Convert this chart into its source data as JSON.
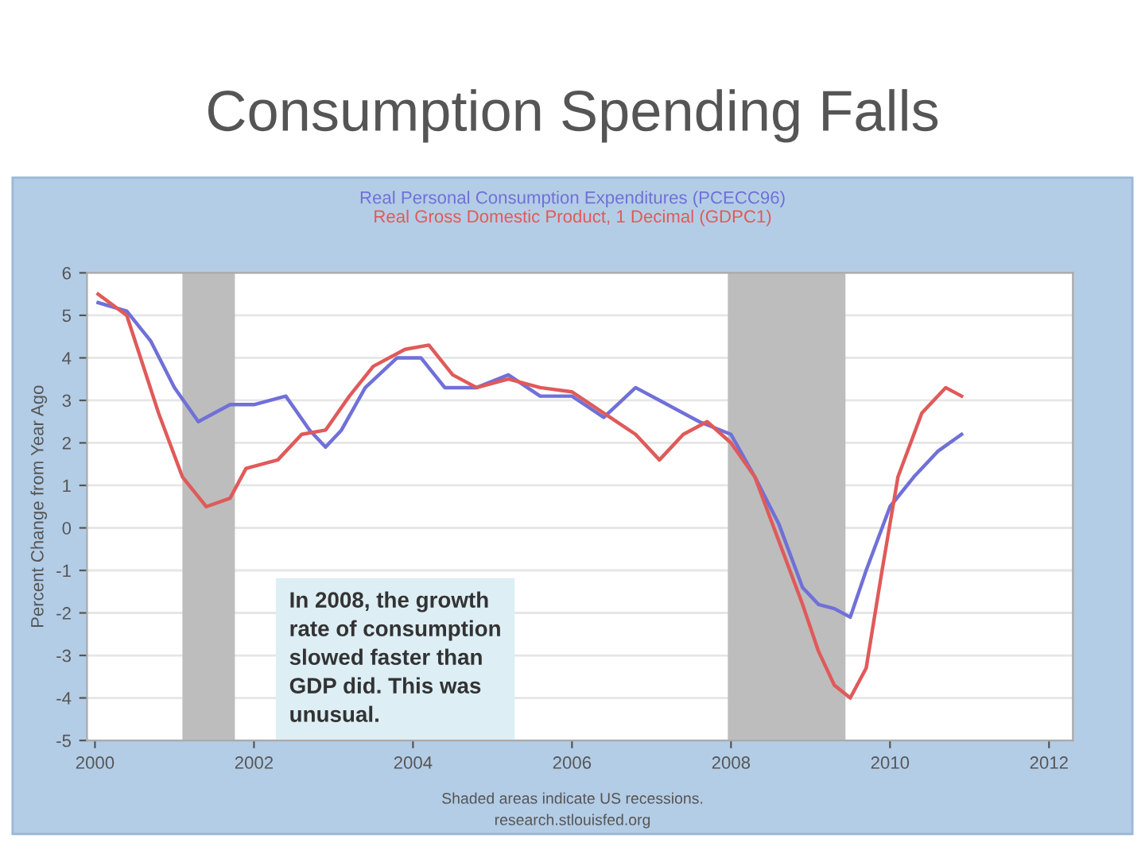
{
  "chart_data": {
    "type": "line",
    "title": "Consumption Spending Falls",
    "ylabel": "Percent Change from Year Ago",
    "annotations": [
      "In 2008, the growth\nrate of consumption\nslowed faster than\nGDP did. This was\nunusual.",
      "Shaded areas indicate US recessions.",
      "research.stlouisfed.org"
    ],
    "series": [
      {
        "name": "Real Personal Consumption Expenditures (PCECC96)",
        "color": "#7070d8",
        "x": [
          2000.04,
          2000.4,
          2000.7,
          2001.0,
          2001.3,
          2001.5,
          2001.7,
          2002.0,
          2002.4,
          2002.7,
          2002.9,
          2003.1,
          2003.4,
          2003.8,
          2004.1,
          2004.4,
          2004.8,
          2005.2,
          2005.6,
          2006.0,
          2006.4,
          2006.8,
          2007.2,
          2007.6,
          2008.0,
          2008.3,
          2008.6,
          2008.9,
          2009.1,
          2009.3,
          2009.5,
          2009.7,
          2010.0,
          2010.3,
          2010.6,
          2010.9
        ],
        "values": [
          5.3,
          5.1,
          4.4,
          3.3,
          2.5,
          2.7,
          2.9,
          2.9,
          3.1,
          2.3,
          1.9,
          2.3,
          3.3,
          4.0,
          4.0,
          3.3,
          3.3,
          3.6,
          3.1,
          3.1,
          2.6,
          3.3,
          2.9,
          2.5,
          2.2,
          1.2,
          0.1,
          -1.4,
          -1.8,
          -1.9,
          -2.1,
          -1.0,
          0.5,
          1.2,
          1.8,
          2.2
        ]
      },
      {
        "name": "Real Gross Domestic Product, 1 Decimal (GDPC1)",
        "color": "#e05a5a",
        "x": [
          2000.04,
          2000.4,
          2000.8,
          2001.1,
          2001.4,
          2001.7,
          2001.9,
          2002.3,
          2002.6,
          2002.9,
          2003.2,
          2003.5,
          2003.9,
          2004.2,
          2004.5,
          2004.8,
          2005.2,
          2005.6,
          2006.0,
          2006.4,
          2006.8,
          2007.1,
          2007.4,
          2007.7,
          2008.0,
          2008.3,
          2008.6,
          2008.9,
          2009.1,
          2009.3,
          2009.5,
          2009.7,
          2009.9,
          2010.1,
          2010.4,
          2010.7,
          2010.9
        ],
        "values": [
          5.5,
          5.0,
          2.7,
          1.2,
          0.5,
          0.7,
          1.4,
          1.6,
          2.2,
          2.3,
          3.1,
          3.8,
          4.2,
          4.3,
          3.6,
          3.3,
          3.5,
          3.3,
          3.2,
          2.7,
          2.2,
          1.6,
          2.2,
          2.5,
          2.0,
          1.2,
          -0.3,
          -1.8,
          -2.9,
          -3.7,
          -4.0,
          -3.3,
          -1.0,
          1.2,
          2.7,
          3.3,
          3.1
        ]
      }
    ],
    "bands": [
      {
        "axis": "x",
        "from": 2001.1,
        "to": 2001.76,
        "color": "#bdbdbd"
      },
      {
        "axis": "x",
        "from": 2007.96,
        "to": 2009.44,
        "color": "#bdbdbd"
      }
    ],
    "xlim": [
      1999.9,
      2012.3
    ],
    "xticks": [
      2000,
      2002,
      2004,
      2006,
      2008,
      2010,
      2012
    ],
    "ylim": [
      -5,
      6
    ],
    "yticks": [
      -5,
      -4,
      -3,
      -2,
      -1,
      0,
      1,
      2,
      3,
      4,
      5,
      6
    ],
    "grid": "y",
    "line_style": "solid",
    "marker": "none"
  }
}
